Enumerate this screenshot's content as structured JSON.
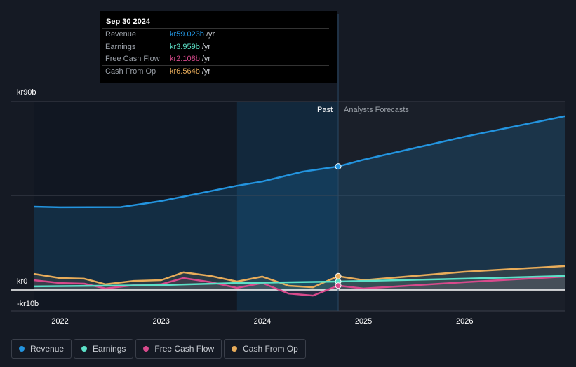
{
  "tooltip": {
    "date": "Sep 30 2024",
    "rows": [
      {
        "label": "Revenue",
        "value": "kr59.023b",
        "unit": " /yr",
        "color": "#2394df"
      },
      {
        "label": "Earnings",
        "value": "kr3.959b",
        "unit": " /yr",
        "color": "#5ce1c8"
      },
      {
        "label": "Free Cash Flow",
        "value": "kr2.108b",
        "unit": " /yr",
        "color": "#d84a8c"
      },
      {
        "label": "Cash From Op",
        "value": "kr6.564b",
        "unit": " /yr",
        "color": "#e8ac5a"
      }
    ]
  },
  "chart_data": {
    "type": "line",
    "ylim": [
      -10,
      90
    ],
    "y_ticks": [
      {
        "v": 90,
        "label": "kr90b"
      },
      {
        "v": 0,
        "label": "kr0"
      },
      {
        "v": -10,
        "label": "-kr10b"
      }
    ],
    "x_ticks": [
      {
        "v": 2022,
        "label": "2022"
      },
      {
        "v": 2023,
        "label": "2023"
      },
      {
        "v": 2024,
        "label": "2024"
      },
      {
        "v": 2025,
        "label": "2025"
      },
      {
        "v": 2026,
        "label": "2026"
      }
    ],
    "xlim": [
      2021.74,
      2026.99
    ],
    "past_label": "Past",
    "forecast_label": "Analysts Forecasts",
    "highlight_from": 2023.75,
    "divider": 2024.75,
    "series": [
      {
        "name": "Revenue",
        "color": "#2394df",
        "fill": true,
        "points": [
          [
            2021.74,
            39.8
          ],
          [
            2022,
            39.5
          ],
          [
            2022.6,
            39.6
          ],
          [
            2023,
            42.5
          ],
          [
            2023.75,
            49.8
          ],
          [
            2024,
            51.8
          ],
          [
            2024.4,
            56.5
          ],
          [
            2024.75,
            59.0
          ],
          [
            2025,
            62.2
          ],
          [
            2026,
            73.2
          ],
          [
            2026.99,
            83
          ]
        ]
      },
      {
        "name": "Earnings",
        "color": "#5ce1c8",
        "points": [
          [
            2021.74,
            1.7
          ],
          [
            2023,
            2.3
          ],
          [
            2023.75,
            3.3
          ],
          [
            2024.75,
            4.0
          ],
          [
            2026,
            5.4
          ],
          [
            2026.99,
            6.7
          ]
        ]
      },
      {
        "name": "Free Cash Flow",
        "color": "#d84a8c",
        "points": [
          [
            2021.74,
            4.7
          ],
          [
            2022,
            3.3
          ],
          [
            2022.24,
            3.0
          ],
          [
            2022.45,
            0.7
          ],
          [
            2022.73,
            2.3
          ],
          [
            2023,
            2.7
          ],
          [
            2023.22,
            5.7
          ],
          [
            2023.49,
            3.7
          ],
          [
            2023.75,
            1.0
          ],
          [
            2024,
            3.3
          ],
          [
            2024.26,
            -1.7
          ],
          [
            2024.5,
            -2.7
          ],
          [
            2024.75,
            2.1
          ],
          [
            2025,
            0.7
          ],
          [
            2026,
            3.7
          ],
          [
            2026.99,
            6.4
          ]
        ]
      },
      {
        "name": "Cash From Op",
        "color": "#e8ac5a",
        "points": [
          [
            2021.74,
            7.7
          ],
          [
            2022,
            5.7
          ],
          [
            2022.24,
            5.4
          ],
          [
            2022.45,
            2.7
          ],
          [
            2022.73,
            4.3
          ],
          [
            2023,
            4.7
          ],
          [
            2023.22,
            8.4
          ],
          [
            2023.49,
            6.7
          ],
          [
            2023.75,
            4.0
          ],
          [
            2024,
            6.4
          ],
          [
            2024.26,
            2.0
          ],
          [
            2024.5,
            1.3
          ],
          [
            2024.75,
            6.6
          ],
          [
            2025,
            4.7
          ],
          [
            2026,
            8.7
          ],
          [
            2026.99,
            11.4
          ]
        ]
      }
    ]
  }
}
